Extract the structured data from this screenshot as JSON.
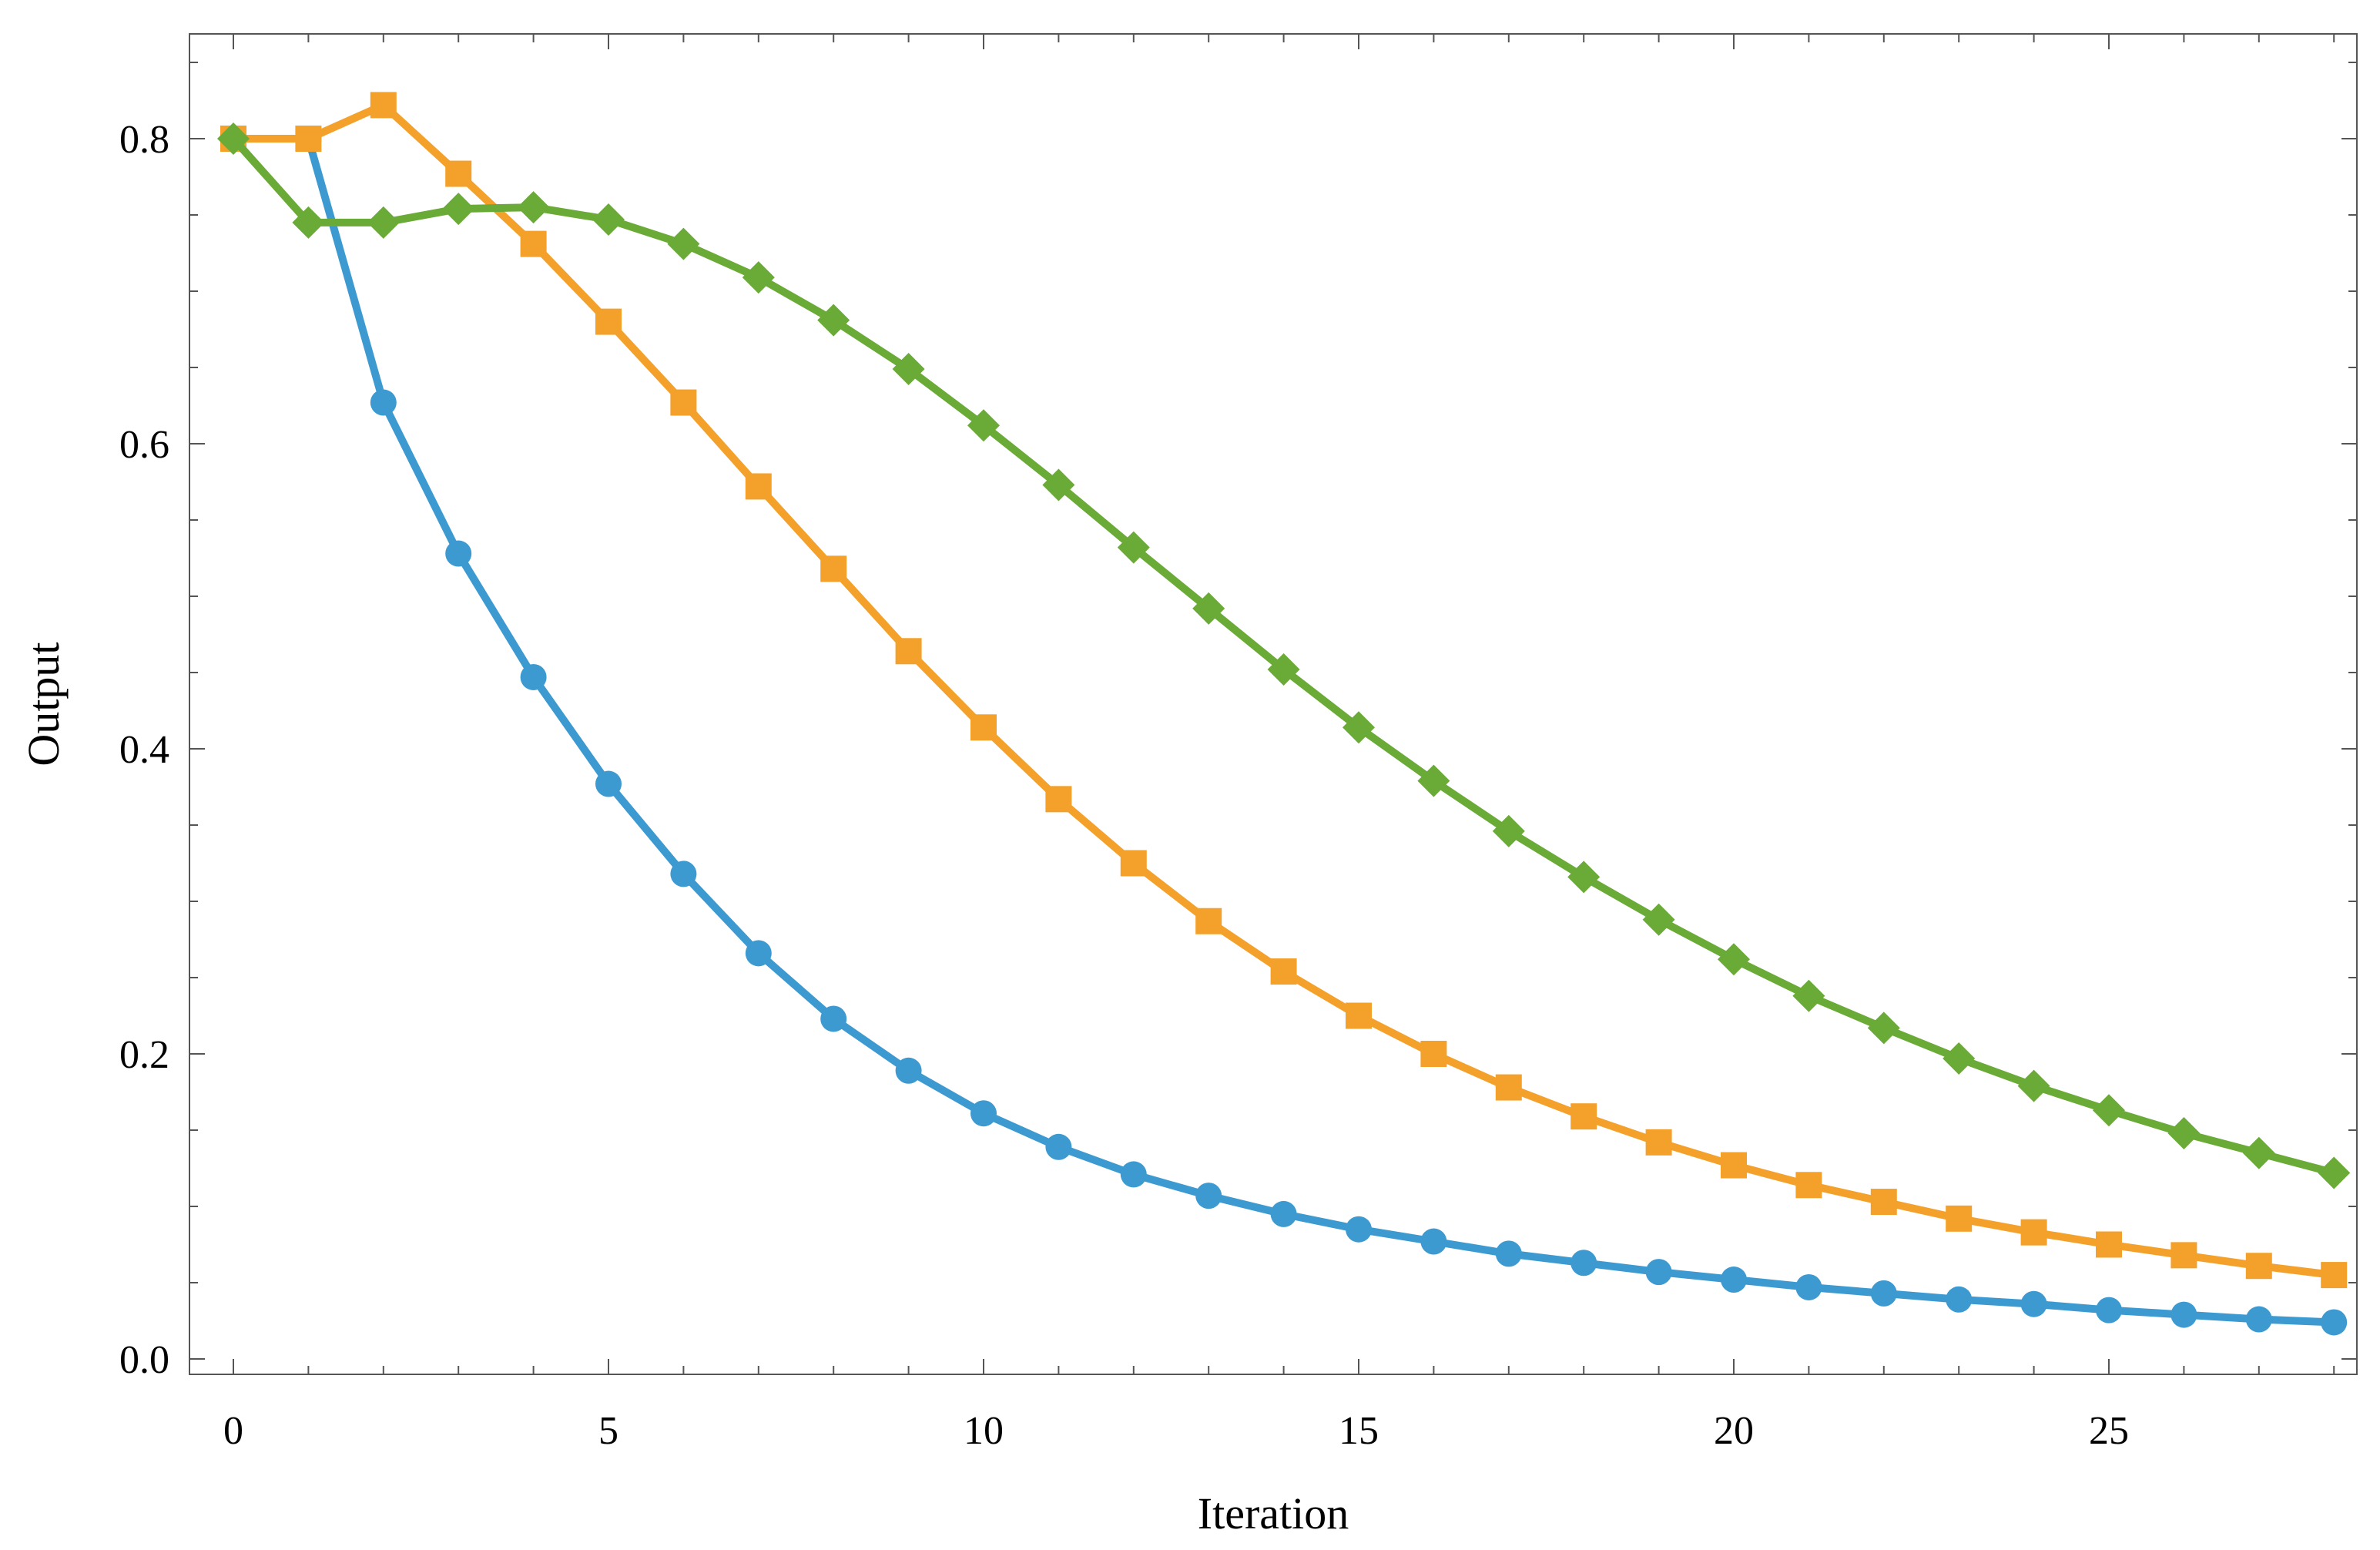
{
  "chart_data": {
    "type": "line",
    "title": "",
    "xlabel": "Iteration",
    "ylabel": "Output",
    "xlim": [
      -0.6,
      28.6
    ],
    "ylim": [
      -0.035,
      0.87
    ],
    "xticks": [
      0,
      5,
      10,
      15,
      20,
      25
    ],
    "yticks": [
      0.0,
      0.2,
      0.4,
      0.6,
      0.8
    ],
    "ytick_labels": [
      "0.0",
      "0.2",
      "0.4",
      "0.6",
      "0.8"
    ],
    "grid": false,
    "legend": "none",
    "x": [
      0,
      1,
      2,
      3,
      4,
      5,
      6,
      7,
      8,
      9,
      10,
      11,
      12,
      13,
      14,
      15,
      16,
      17,
      18,
      19,
      20,
      21,
      22,
      23,
      24,
      25,
      26,
      27,
      28
    ],
    "series": [
      {
        "marker": "circle",
        "color": "#3d9ad1",
        "values": [
          0.8,
          0.8,
          0.627,
          0.528,
          0.447,
          0.377,
          0.318,
          0.266,
          0.223,
          0.189,
          0.161,
          0.139,
          0.121,
          0.107,
          0.095,
          0.085,
          0.077,
          0.069,
          0.063,
          0.057,
          0.052,
          0.047,
          0.043,
          0.039,
          0.036,
          0.032,
          0.029,
          0.026,
          0.024
        ]
      },
      {
        "marker": "square",
        "color": "#f4a12b",
        "values": [
          0.8,
          0.8,
          0.822,
          0.777,
          0.731,
          0.68,
          0.627,
          0.572,
          0.518,
          0.464,
          0.414,
          0.367,
          0.325,
          0.287,
          0.254,
          0.225,
          0.2,
          0.178,
          0.159,
          0.142,
          0.127,
          0.114,
          0.103,
          0.092,
          0.083,
          0.075,
          0.068,
          0.061,
          0.055
        ]
      },
      {
        "marker": "diamond",
        "color": "#6aaa36",
        "values": [
          0.8,
          0.745,
          0.745,
          0.754,
          0.755,
          0.747,
          0.731,
          0.709,
          0.681,
          0.649,
          0.612,
          0.573,
          0.532,
          0.492,
          0.452,
          0.414,
          0.379,
          0.346,
          0.316,
          0.288,
          0.262,
          0.238,
          0.217,
          0.197,
          0.179,
          0.163,
          0.148,
          0.135,
          0.122
        ]
      }
    ]
  }
}
